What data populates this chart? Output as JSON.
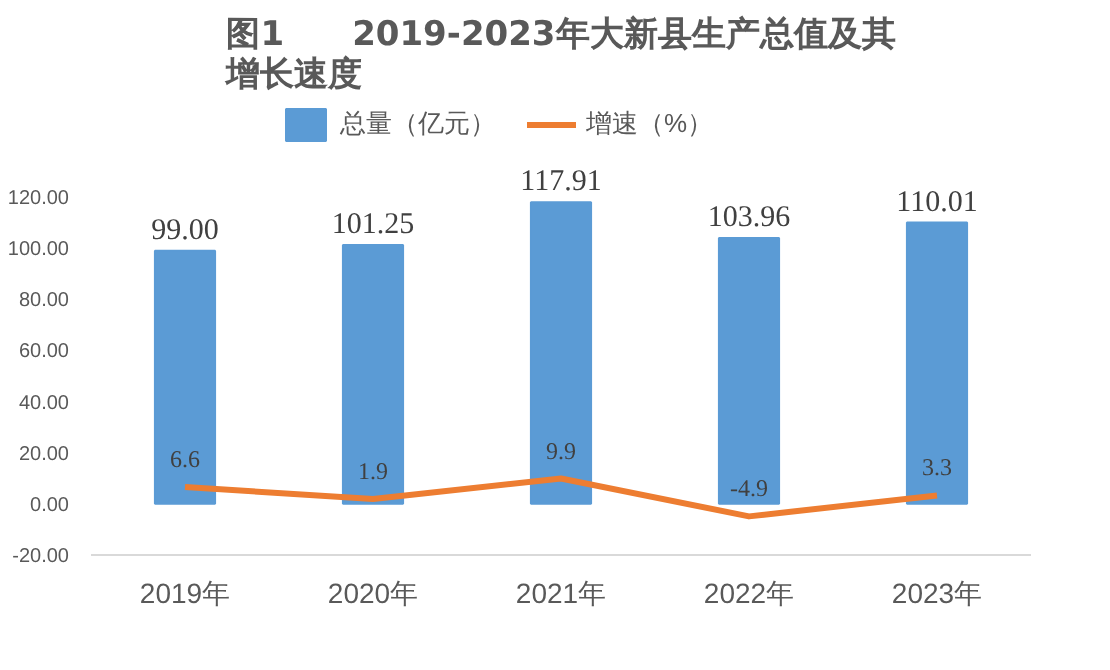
{
  "chart_data": {
    "type": "bar",
    "title": "图1　　2019-2023年大新县生产总值及其增长速度",
    "categories": [
      "2019年",
      "2020年",
      "2021年",
      "2022年",
      "2023年"
    ],
    "series": [
      {
        "name": "总量（亿元）",
        "color": "#5b9bd5",
        "values": [
          99.0,
          101.25,
          117.91,
          103.96,
          110.01
        ],
        "value_labels": [
          "99.00",
          "101.25",
          "117.91",
          "103.96",
          "110.01"
        ]
      },
      {
        "name": "增速（%）",
        "type": "line",
        "color": "#ed7d31",
        "values": [
          6.6,
          1.9,
          9.9,
          -4.9,
          3.3
        ],
        "value_labels": [
          "6.6",
          "1.9",
          "9.9",
          "-4.9",
          "3.3"
        ]
      }
    ],
    "ylim": [
      -20,
      120
    ],
    "yticks": [
      {
        "value": -20,
        "label": "-20.00"
      },
      {
        "value": 0,
        "label": "0.00"
      },
      {
        "value": 20,
        "label": "20.00"
      },
      {
        "value": 40,
        "label": "40.00"
      },
      {
        "value": 60,
        "label": "60.00"
      },
      {
        "value": 80,
        "label": "80.00"
      },
      {
        "value": 100,
        "label": "100.00"
      },
      {
        "value": 120,
        "label": "120.00"
      }
    ],
    "grid": false,
    "legend": "top"
  }
}
